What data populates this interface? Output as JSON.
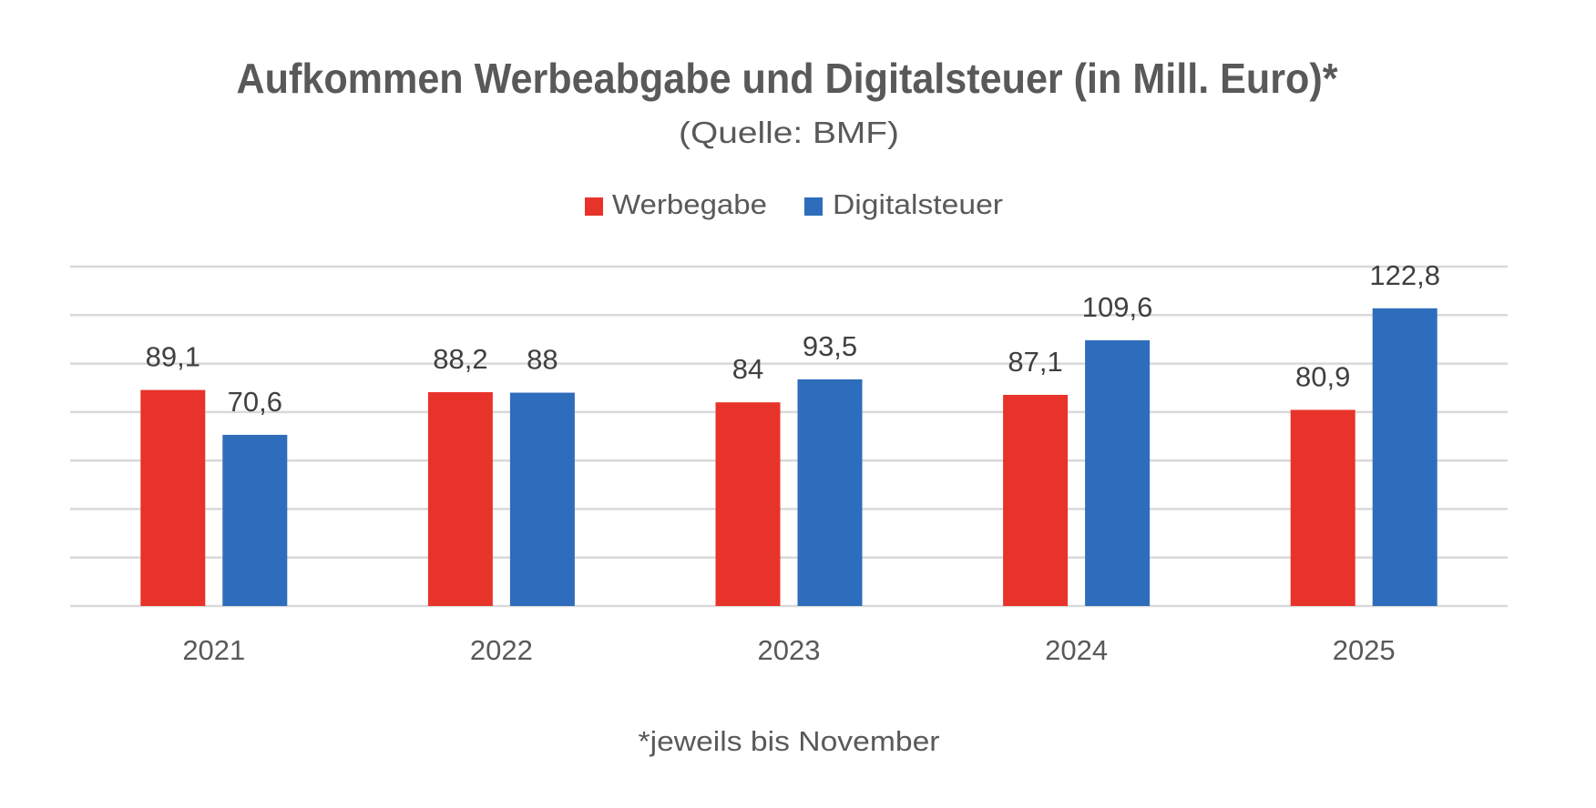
{
  "chart_data": {
    "type": "bar",
    "title": "Aufkommen Werbeabgabe und Digitalsteuer (in Mill. Euro)*",
    "subtitle": "(Quelle: BMF)",
    "footnote": "*jeweils bis November",
    "categories": [
      "2021",
      "2022",
      "2023",
      "2024",
      "2025"
    ],
    "series": [
      {
        "name": "Werbegabe",
        "color": "#E8332A",
        "values": [
          89.1,
          88.2,
          84,
          87.1,
          80.9
        ],
        "labels": [
          "89,1",
          "88,2",
          "84",
          "87,1",
          "80,9"
        ]
      },
      {
        "name": "Digitalsteuer",
        "color": "#2E6DBB",
        "values": [
          70.6,
          88,
          93.5,
          109.6,
          122.8
        ],
        "labels": [
          "70,6",
          "88",
          "93,5",
          "109,6",
          "122,8"
        ]
      }
    ],
    "xlabel": "",
    "ylabel": "",
    "ylim": [
      0,
      140
    ],
    "ytick_step": 20,
    "grid": true,
    "y_axis_labels_visible": false,
    "legend": "top-center",
    "data_labels": true
  }
}
